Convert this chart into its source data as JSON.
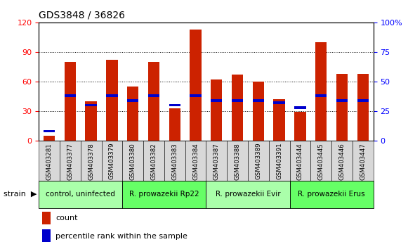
{
  "title": "GDS3848 / 36826",
  "samples": [
    "GSM403281",
    "GSM403377",
    "GSM403378",
    "GSM403379",
    "GSM403380",
    "GSM403382",
    "GSM403383",
    "GSM403384",
    "GSM403387",
    "GSM403388",
    "GSM403389",
    "GSM403391",
    "GSM403444",
    "GSM403445",
    "GSM403446",
    "GSM403447"
  ],
  "count_values": [
    5,
    80,
    40,
    82,
    55,
    80,
    33,
    113,
    62,
    67,
    60,
    42,
    29,
    100,
    68,
    68
  ],
  "percentile_values": [
    8,
    38,
    30,
    38,
    34,
    38,
    30,
    38,
    34,
    34,
    34,
    32,
    28,
    38,
    34,
    34
  ],
  "groups": [
    {
      "label": "control, uninfected",
      "start": 0,
      "end": 4,
      "color": "#aaffaa"
    },
    {
      "label": "R. prowazekii Rp22",
      "start": 4,
      "end": 8,
      "color": "#66ff66"
    },
    {
      "label": "R. prowazekii Evir",
      "start": 8,
      "end": 12,
      "color": "#aaffaa"
    },
    {
      "label": "R. prowazekii Erus",
      "start": 12,
      "end": 16,
      "color": "#66ff66"
    }
  ],
  "left_ylim": [
    0,
    120
  ],
  "right_ylim": [
    0,
    100
  ],
  "left_yticks": [
    0,
    30,
    60,
    90,
    120
  ],
  "right_yticks": [
    0,
    25,
    50,
    75,
    100
  ],
  "right_ytick_labels": [
    "0",
    "25",
    "50",
    "75",
    "100%"
  ],
  "bar_color": "#cc2200",
  "percentile_color": "#0000cc",
  "bar_width": 0.55,
  "grid_color": "#333333",
  "legend_count_label": "count",
  "legend_percentile_label": "percentile rank within the sample"
}
